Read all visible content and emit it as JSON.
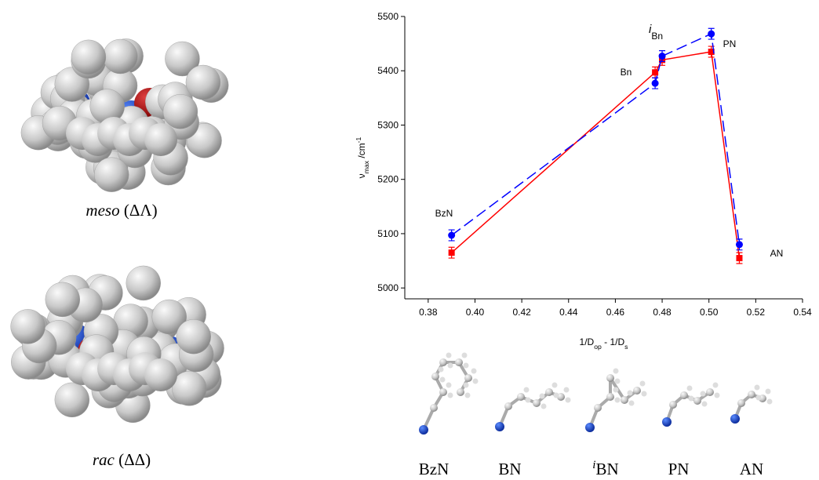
{
  "chart_data": {
    "type": "line",
    "xlabel": [
      {
        "text": "1/D"
      },
      {
        "text": "op",
        "style": "sub"
      },
      {
        "text": " - 1/D"
      },
      {
        "text": "s",
        "style": "sub"
      }
    ],
    "ylabel": [
      {
        "text": "ν"
      },
      {
        "text": "max",
        "style": "sub"
      },
      {
        "text": " /cm"
      },
      {
        "text": "-1",
        "style": "sup"
      }
    ],
    "x": [
      0.39,
      0.477,
      0.48,
      0.501,
      0.513
    ],
    "series": [
      {
        "color": "#ff0000",
        "marker": "square",
        "dash": false,
        "values": [
          5065,
          5397,
          5420,
          5435,
          5055
        ],
        "errors": [
          10,
          10,
          10,
          10,
          10
        ]
      },
      {
        "color": "#0000ff",
        "marker": "circle",
        "dash": true,
        "values": [
          5097,
          5377,
          5427,
          5468,
          5080
        ],
        "errors": [
          10,
          10,
          10,
          10,
          10
        ]
      }
    ],
    "xlim": [
      0.37,
      0.54
    ],
    "xticks": [
      {
        "value": 0.38,
        "label": "0.38"
      },
      {
        "value": 0.4,
        "label": "0.40"
      },
      {
        "value": 0.42,
        "label": "0.42"
      },
      {
        "value": 0.44,
        "label": "0.44"
      },
      {
        "value": 0.46,
        "label": "0.46"
      },
      {
        "value": 0.48,
        "label": "0.48"
      },
      {
        "value": 0.5,
        "label": "0.50"
      },
      {
        "value": 0.52,
        "label": "0.52"
      },
      {
        "value": 0.54,
        "label": "0.54"
      }
    ],
    "ylim": [
      4980,
      5500
    ],
    "yticks": [
      5000,
      5100,
      5200,
      5300,
      5400,
      5500
    ],
    "annotations": [
      [
        {
          "text": "BzN"
        }
      ],
      [
        {
          "text": "Bn"
        }
      ],
      [
        {
          "text": "i",
          "style": "sup-italic"
        },
        {
          "text": "Bn"
        }
      ],
      [
        {
          "text": "PN"
        }
      ],
      [
        {
          "text": "AN"
        }
      ]
    ]
  },
  "structures": {
    "isomers": [
      [
        {
          "text": "meso",
          "style": "italic"
        },
        {
          "text": " (ΔΛ)"
        }
      ],
      [
        {
          "text": "rac",
          "style": "italic"
        },
        {
          "text": " (ΔΔ)"
        }
      ]
    ],
    "nitriles": [
      [
        {
          "text": "BzN"
        }
      ],
      [
        {
          "text": "BN"
        }
      ],
      [
        {
          "text": "i",
          "style": "sup-italic"
        },
        {
          "text": "BN"
        }
      ],
      [
        {
          "text": "PN"
        }
      ],
      [
        {
          "text": "AN"
        }
      ]
    ]
  }
}
